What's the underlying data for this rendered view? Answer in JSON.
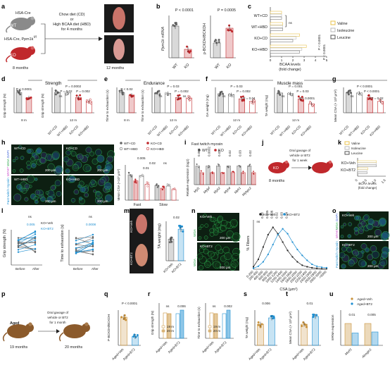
{
  "panel_letters": [
    "a",
    "b",
    "c",
    "d",
    "e",
    "f",
    "g",
    "h",
    "i",
    "j",
    "k",
    "l",
    "m",
    "n",
    "o",
    "p",
    "q",
    "r",
    "s",
    "t",
    "u"
  ],
  "panel_a": {
    "mouse_wt_top": "HSA-Cre",
    "mouse_wt_label": "WT",
    "mouse_ko_top": "HSA-Cre, Ppm1k",
    "mouse_ko_sup": "f/f",
    "mouse_ko_label": "KO",
    "age_start": "8 months",
    "age_end": "12 months",
    "diet_text": [
      "Chow diet (CD)",
      "or",
      "High BCAA diet (HBD)",
      "for 4 months"
    ]
  },
  "panel_b": {
    "left": {
      "ylabel": "Ppm1k mRNA",
      "p": "P < 0.0001",
      "categories": [
        "WT",
        "KO"
      ]
    },
    "right": {
      "ylabel": "p-BCKDH/BCKDH",
      "p": "P = 0.0005",
      "categories": [
        "WT",
        "KO"
      ]
    }
  },
  "panel_c": {
    "xlabel": "BCAA levels",
    "xlabel2": "(fold change)",
    "groups": [
      "WT+CD",
      "WT+HBD",
      "KO+CD",
      "KO+HBD"
    ],
    "legend": [
      "Valine",
      "Isoleucine",
      "Leucine"
    ],
    "ticks": [
      "0",
      "1",
      "2",
      "3",
      "4",
      "5"
    ],
    "ns": "ns",
    "p": [
      "P < 0.0001",
      "P < 0.0001"
    ]
  },
  "section_labels": {
    "strength": "Strength",
    "endurance": "Endurance",
    "muscle_mass": "Muscle mass"
  },
  "panel_d": {
    "left": {
      "ylabel": "Grip strength (N)",
      "p": "P < 0.0001",
      "age": "8 m",
      "categories": [
        "WT",
        "KO"
      ]
    },
    "right": {
      "ylabel": "Grip strength (N)",
      "age": "12 m",
      "categories": [
        "WT+CD",
        "WT+HBD",
        "KO+CD",
        "KO+HBD"
      ],
      "p": [
        "P = 0.0002",
        "P = 0.02",
        "P = 0.002"
      ],
      "ns": "ns"
    }
  },
  "panel_e": {
    "left": {
      "ylabel": "Time to exhaustion (s)",
      "p": "P < 0.02",
      "age": "8 m",
      "categories": [
        "WT",
        "KO"
      ]
    },
    "right": {
      "ylabel": "Time to exhaustion (s)",
      "age": "12 m",
      "categories": [
        "WT+CD",
        "WT+HBD",
        "KO+CD",
        "KO+HBD"
      ],
      "p": [
        "P = 0.03",
        "P = 0.002"
      ],
      "ns": [
        "ns",
        "ns"
      ]
    }
  },
  "panel_f": {
    "left": {
      "ylabel": "GA weight (mg)",
      "age": "12 m",
      "categories": [
        "WT+CD",
        "WT+HBD",
        "KO+CD",
        "KO+HBD"
      ],
      "p": [
        "P = 0.03",
        "P = 0.002",
        "P = 0.04"
      ],
      "ns": "ns"
    },
    "right": {
      "ylabel": "TA weight (mg)",
      "age": "12 m",
      "categories": [
        "WT+CD",
        "WT+HBD",
        "KO+CD",
        "KO+HBD"
      ],
      "p": [
        "P = 0.001",
        "P = 0.03",
        "P < 0.0001"
      ],
      "ns": "ns"
    }
  },
  "panel_g": {
    "ylabel": "Mean CSA (× 10³ μm²)",
    "categories": [
      "WT+CD",
      "WT+HBD",
      "KO+CD",
      "KO+HBD"
    ],
    "p": [
      "P < 0.0001",
      "P < 0.0001",
      "P = 0.02"
    ],
    "ns": "ns"
  },
  "panel_h": {
    "stain": [
      "Fast twitch myosin",
      "MYH7",
      "WGA",
      "DAPI"
    ],
    "images": [
      "WT+CD",
      "KO+CD",
      "WT+HBD",
      "KO+HBD"
    ],
    "scale": "200 μm",
    "chart": {
      "ylabel": "Mean CSA (×10³ μm²)",
      "legend": [
        "WT+CD",
        "KO+CD",
        "WT+HBD",
        "KO+HBD"
      ],
      "categories": [
        "Fast",
        "Slow"
      ],
      "p": [
        "0.005",
        "0.02",
        "0.01"
      ],
      "ns": "ns"
    }
  },
  "panel_i": {
    "title": "Fast twitch myosin",
    "legend": [
      "WT",
      "KO"
    ],
    "ylabel": "Relative expression (log2)",
    "genes": [
      "Myl1",
      "Mylpf",
      "Myh2",
      "Myh4",
      "Myh1",
      "Mybpc2"
    ],
    "p": [
      "0.004",
      "0.0002",
      "0.03",
      "0.02",
      "0.03",
      "0.02"
    ]
  },
  "panel_j": {
    "mouse_label": "KO",
    "age": "8 months",
    "text": [
      "Oral gavage of",
      "vehicle or BT2",
      "for 1 week"
    ]
  },
  "panel_k": {
    "legend": [
      "Valine",
      "Isoleucine",
      "Leucine"
    ],
    "groups": [
      "KO+Veh",
      "KO+BT2"
    ],
    "xlabel": "BCAA levels",
    "xlabel2": "(fold change)",
    "ticks": [
      "0",
      "0.5",
      "1.0",
      "1.5"
    ]
  },
  "panel_l": {
    "left": {
      "ylabel": "Grip strength (N)",
      "ns": "ns",
      "p": "0.005",
      "x": [
        "Before",
        "After"
      ],
      "legend": [
        "KO+Veh",
        "KO+BT2"
      ]
    },
    "right": {
      "ylabel": "Time to exhaustion (s)",
      "ns": "ns",
      "p": "0.0008",
      "x": [
        "Before",
        "After"
      ]
    }
  },
  "panel_m": {
    "labels": [
      "KO+Veh",
      "KO+BT2"
    ],
    "ylabel": "TA weight (mg)",
    "p": "0.02",
    "categories": [
      "KO+Veh",
      "KO+BT2"
    ]
  },
  "panel_n": {
    "images": [
      "KO+Veh",
      "KO+BT2"
    ],
    "stain": "WGA",
    "scale": "200 μm",
    "legend": [
      "KO+Veh",
      "KO+BT2"
    ],
    "ylabel": "% Fibers",
    "xlabel": "CSA (μm²)",
    "p": [
      "0.02",
      "0.005",
      "0.006",
      "0.02",
      "0.03",
      "0.04"
    ],
    "ns": "ns",
    "bins": [
      "0-200",
      "200-400",
      "400-600",
      "600-800",
      "800-1000",
      "1000-1200",
      "1200-1400",
      "1400-1600",
      "1600-1800",
      "1800-2000",
      "2000-2200",
      "2200-2400",
      "2400-2600",
      "2600-2800",
      "2800-3000",
      ">3000"
    ]
  },
  "panel_o": {
    "images": [
      "KO+Veh",
      "KO+BT2"
    ],
    "stain": [
      "Fast twitch myosin",
      "MYH7",
      "WGA",
      "DAPI"
    ],
    "scale": "200 μm"
  },
  "panel_p": {
    "mouse_label": "Aged",
    "age_start": "19 months",
    "age_end": "20 months",
    "text": [
      "Oral gavage of",
      "vehicle or BT2",
      "for 1 month"
    ]
  },
  "panel_q": {
    "ylabel": "P-BCKDH/BCKDH",
    "p": "P < 0.0001",
    "categories": [
      "Aged+Veh",
      "Aged+BT2"
    ]
  },
  "panel_r": {
    "left": {
      "ylabel": "Grip strength (N)",
      "ns": "ns",
      "p": "0.006",
      "legend": [
        "19 m",
        "20 m"
      ],
      "categories": [
        "Aged+Veh",
        "Aged+BT2"
      ]
    },
    "right": {
      "ylabel": "Time to exhaustion (s)",
      "ns": "ns",
      "p": "0.002",
      "legend": [
        "19 m",
        "20 m"
      ],
      "categories": [
        "Aged+Veh",
        "Aged+BT2"
      ]
    }
  },
  "panel_s": {
    "ylabel": "TA weight (mg)",
    "p": "0.006",
    "categories": [
      "Aged+Veh",
      "Aged+BT2"
    ]
  },
  "panel_t": {
    "ylabel": "Mean CSA (× 10³ μm²)",
    "p": "0.01",
    "categories": [
      "Aged+Veh",
      "Aged+BT2"
    ]
  },
  "panel_u": {
    "ylabel": "mRNA expression",
    "legend": [
      "Aged+Veh",
      "Aged+BT2"
    ],
    "p": [
      "0.01",
      "0.005"
    ],
    "genes": [
      "Murf1",
      "Atrogin1"
    ]
  },
  "colors": {
    "wt": "#666666",
    "ko": "#c0282c",
    "bt2": "#1f8fd1",
    "aged": "#c8913a",
    "valine": "#e8c24a",
    "isoleucine": "#b9b9b9",
    "leucine": "#7a7a7a"
  }
}
